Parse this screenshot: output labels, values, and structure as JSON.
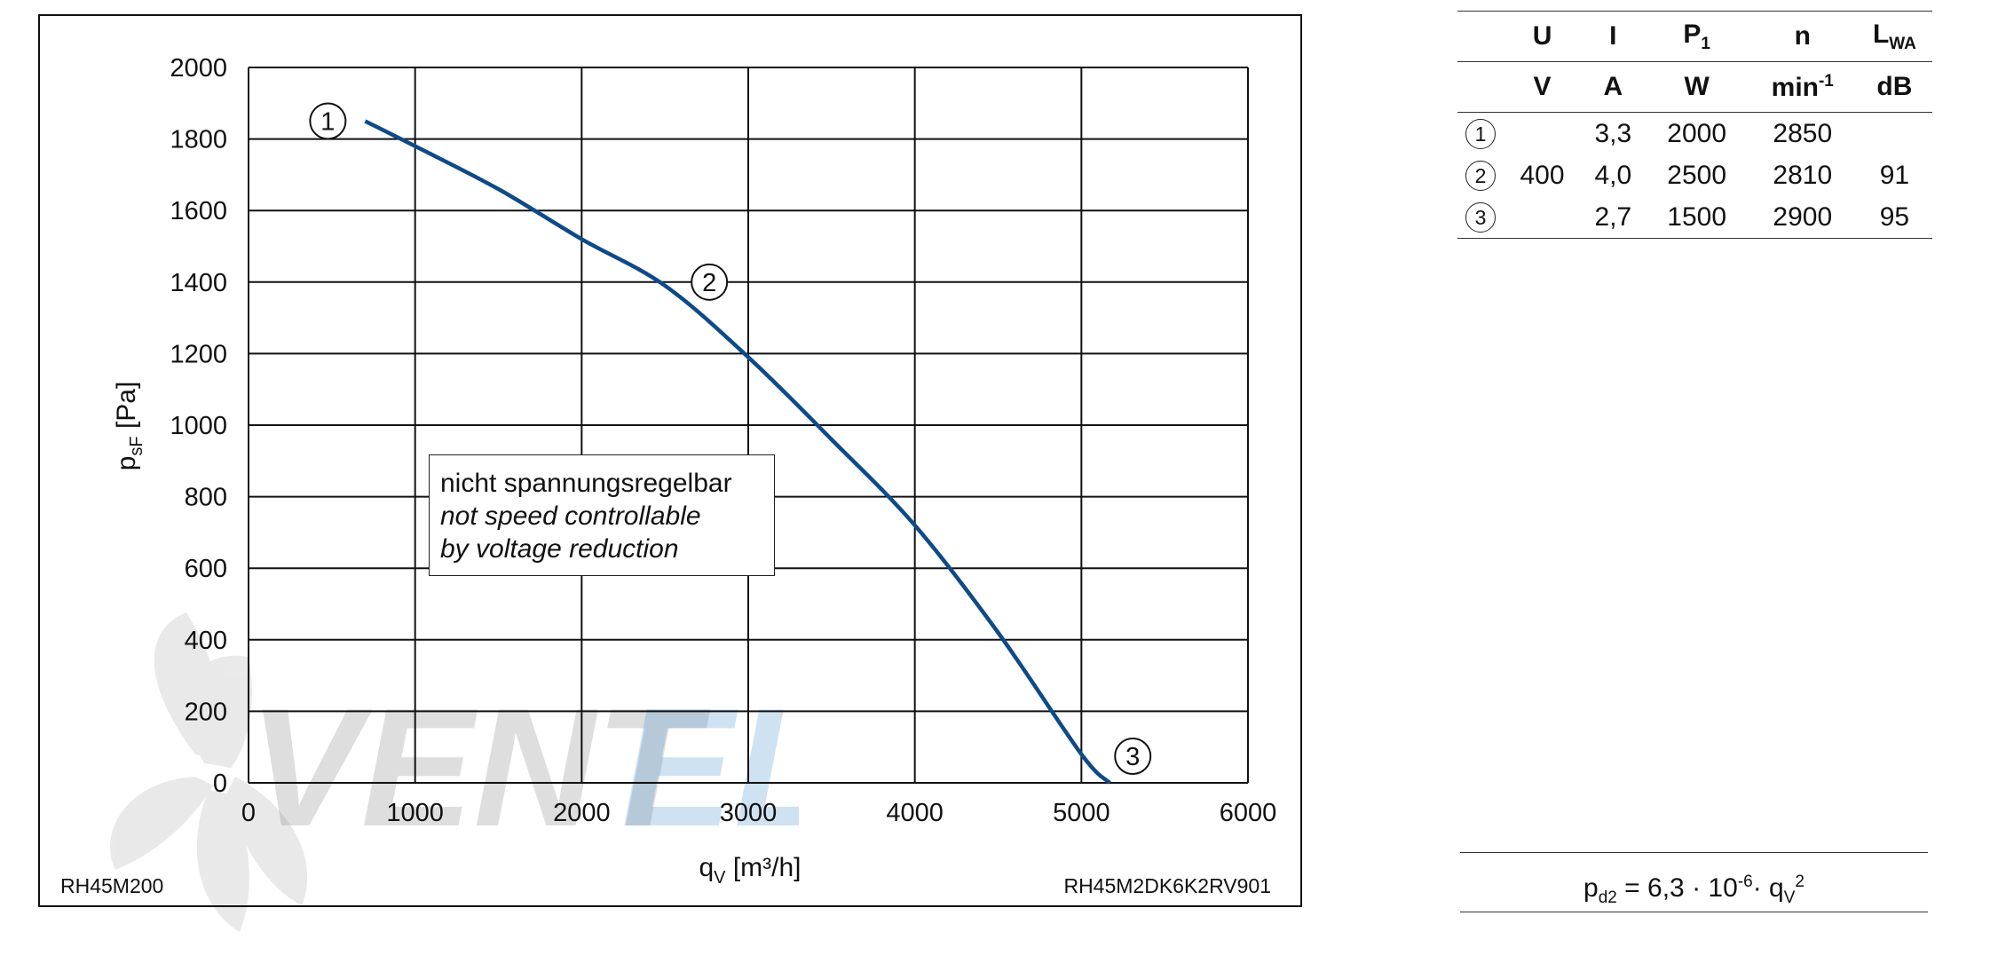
{
  "chart_data": {
    "type": "line",
    "x": [
      700,
      1000,
      1500,
      2000,
      2500,
      3000,
      3500,
      4000,
      4500,
      5000,
      5170
    ],
    "series": [
      {
        "values": [
          1850,
          1780,
          1660,
          1520,
          1390,
          1190,
          960,
          720,
          420,
          80,
          0
        ]
      }
    ],
    "xlim": [
      0,
      6000
    ],
    "ylim": [
      0,
      2000
    ],
    "x_ticks": [
      "0",
      "1000",
      "2000",
      "3000",
      "4000",
      "5000",
      "6000"
    ],
    "y_ticks": [
      "0",
      "200",
      "400",
      "600",
      "800",
      "1000",
      "1200",
      "1400",
      "1600",
      "1800",
      "2000"
    ],
    "ylabel_main": "p",
    "ylabel_sub": "sF",
    "ylabel_unit": " [Pa]",
    "xlabel_main": "q",
    "xlabel_sub": "V",
    "xlabel_unit": " [m³/h]",
    "grid": true,
    "line_color": "#0e4a87",
    "operating_points": [
      {
        "label": "1",
        "x": 700,
        "y": 1850
      },
      {
        "label": "2",
        "x": 2500,
        "y": 1390
      },
      {
        "label": "3",
        "x": 5170,
        "y": 0
      }
    ]
  },
  "note": {
    "line1": "nicht spannungsregelbar",
    "line2": "not speed controllable",
    "line3": "by voltage reduction"
  },
  "footer": {
    "left": "RH45M200",
    "right": "RH45M2DK6K2RV901"
  },
  "watermark": {
    "text_left": "VENT",
    "text_right": "EL"
  },
  "table": {
    "headers": [
      "U",
      "I",
      "P",
      "n",
      "L"
    ],
    "header_subs": {
      "P": "1",
      "L": "WA"
    },
    "units": [
      "V",
      "A",
      "W",
      "min",
      "dB"
    ],
    "unit_sup_min": "-1",
    "rows": [
      {
        "marker": "1",
        "U": "",
        "I": "3,3",
        "P": "2000",
        "n": "2850",
        "L": ""
      },
      {
        "marker": "2",
        "U": "400",
        "I": "4,0",
        "P": "2500",
        "n": "2810",
        "L": "91"
      },
      {
        "marker": "3",
        "U": "",
        "I": "2,7",
        "P": "1500",
        "n": "2900",
        "L": "95"
      }
    ]
  },
  "formula": {
    "p": "p",
    "p_sub": "d2",
    "mid": " = 6,3 · 10",
    "exp": "-6",
    "dot": "· q",
    "q_sub": "V",
    "q_exp": "2"
  }
}
